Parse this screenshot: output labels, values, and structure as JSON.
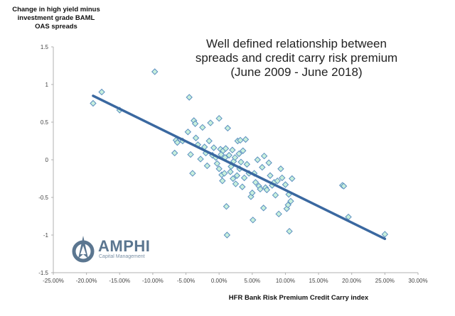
{
  "chart_data": {
    "type": "scatter",
    "title": "Well defined relationship between\nspreads and credit carry risk premium\n(June 2009 - June 2018)",
    "xlabel": "HFR Bank Risk Premium Credit Carry index",
    "ylabel": "Change in high yield minus\ninvestment grade  BAML\nOAS spreads",
    "xlim": [
      -0.25,
      0.3
    ],
    "ylim": [
      -1.5,
      1.5
    ],
    "x_ticks": [
      -0.25,
      -0.2,
      -0.15,
      -0.1,
      -0.05,
      0.0,
      0.05,
      0.1,
      0.15,
      0.2,
      0.25,
      0.3
    ],
    "x_tick_labels": [
      "-25.00%",
      "-20.00%",
      "-15.00%",
      "-10.00%",
      "-5.00%",
      "0.00%",
      "5.00%",
      "10.00%",
      "15.00%",
      "20.00%",
      "25.00%",
      "30.00%"
    ],
    "y_ticks": [
      1.5,
      1,
      0.5,
      0,
      -0.5,
      -1,
      -1.5
    ],
    "y_tick_labels": [
      "1.5",
      "1",
      "0.5",
      "0",
      "-0.5",
      "-1",
      "-1.5"
    ],
    "grid": false,
    "colors": {
      "marker_fill": "#c8f0dc",
      "marker_edge": "#5b8fc0",
      "trendline": "#3a68a0"
    },
    "trendline": {
      "x": [
        -0.19,
        0.25
      ],
      "y": [
        0.85,
        -1.05
      ]
    },
    "points": [
      [
        -0.19,
        0.75
      ],
      [
        -0.177,
        0.9
      ],
      [
        -0.15,
        0.66
      ],
      [
        -0.097,
        1.17
      ],
      [
        -0.065,
        0.26
      ],
      [
        -0.063,
        0.23
      ],
      [
        -0.067,
        0.09
      ],
      [
        -0.055,
        0.25
      ],
      [
        -0.047,
        0.37
      ],
      [
        -0.045,
        0.83
      ],
      [
        -0.043,
        0.07
      ],
      [
        -0.04,
        -0.18
      ],
      [
        -0.038,
        0.52
      ],
      [
        -0.036,
        0.48
      ],
      [
        -0.035,
        0.29
      ],
      [
        -0.032,
        0.2
      ],
      [
        -0.028,
        0.01
      ],
      [
        -0.025,
        0.43
      ],
      [
        -0.022,
        0.17
      ],
      [
        -0.02,
        0.09
      ],
      [
        -0.018,
        -0.08
      ],
      [
        -0.015,
        0.25
      ],
      [
        -0.013,
        0.49
      ],
      [
        -0.01,
        0.06
      ],
      [
        -0.008,
        0.16
      ],
      [
        -0.005,
        0.03
      ],
      [
        -0.003,
        -0.05
      ],
      [
        0.0,
        0.55
      ],
      [
        0.0,
        -0.12
      ],
      [
        0.002,
        0.14
      ],
      [
        0.003,
        0.07
      ],
      [
        0.004,
        -0.2
      ],
      [
        0.005,
        -0.28
      ],
      [
        0.006,
        0.12
      ],
      [
        0.008,
        -0.18
      ],
      [
        0.009,
        0.03
      ],
      [
        0.01,
        0.15
      ],
      [
        0.011,
        -0.62
      ],
      [
        0.012,
        -1.0
      ],
      [
        0.013,
        0.42
      ],
      [
        0.015,
        0.06
      ],
      [
        0.017,
        -0.16
      ],
      [
        0.018,
        -0.09
      ],
      [
        0.02,
        0.13
      ],
      [
        0.021,
        -0.25
      ],
      [
        0.022,
        -0.02
      ],
      [
        0.024,
        0.03
      ],
      [
        0.025,
        -0.32
      ],
      [
        0.027,
        -0.21
      ],
      [
        0.028,
        0.25
      ],
      [
        0.03,
        0.08
      ],
      [
        0.031,
        -0.12
      ],
      [
        0.032,
        0.26
      ],
      [
        0.033,
        -0.03
      ],
      [
        0.035,
        -0.36
      ],
      [
        0.036,
        0.12
      ],
      [
        0.038,
        -0.24
      ],
      [
        0.04,
        0.27
      ],
      [
        0.042,
        -0.06
      ],
      [
        0.045,
        -0.18
      ],
      [
        0.048,
        -0.49
      ],
      [
        0.05,
        -0.44
      ],
      [
        0.051,
        -0.8
      ],
      [
        0.053,
        -0.18
      ],
      [
        0.055,
        -0.3
      ],
      [
        0.058,
        0.0
      ],
      [
        0.06,
        -0.35
      ],
      [
        0.062,
        -0.39
      ],
      [
        0.065,
        -0.1
      ],
      [
        0.067,
        -0.64
      ],
      [
        0.068,
        0.05
      ],
      [
        0.07,
        -0.37
      ],
      [
        0.072,
        -0.4
      ],
      [
        0.075,
        -0.04
      ],
      [
        0.077,
        -0.21
      ],
      [
        0.08,
        -0.34
      ],
      [
        0.083,
        -0.3
      ],
      [
        0.085,
        -0.47
      ],
      [
        0.088,
        -0.28
      ],
      [
        0.09,
        -0.72
      ],
      [
        0.093,
        -0.12
      ],
      [
        0.095,
        -0.24
      ],
      [
        0.1,
        -0.33
      ],
      [
        0.102,
        -0.65
      ],
      [
        0.104,
        -0.6
      ],
      [
        0.105,
        -0.46
      ],
      [
        0.106,
        -0.95
      ],
      [
        0.108,
        -0.55
      ],
      [
        0.11,
        -0.25
      ],
      [
        0.186,
        -0.34
      ],
      [
        0.188,
        -0.35
      ],
      [
        0.195,
        -0.76
      ],
      [
        0.25,
        -0.99
      ]
    ]
  },
  "logo": {
    "name": "AMPHI",
    "sub": "Capital Management"
  }
}
